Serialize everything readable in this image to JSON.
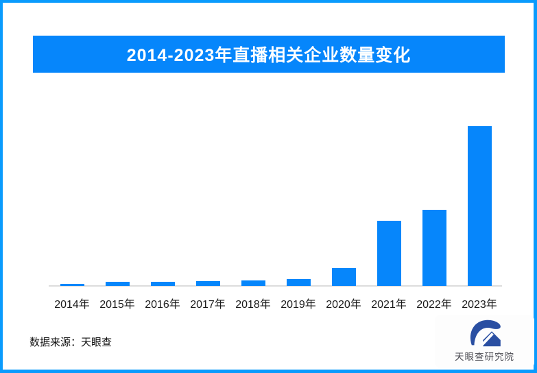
{
  "page": {
    "background": "#ffffff",
    "border_color": "#0a9bfd"
  },
  "title_banner": {
    "text": "2014-2023年直播相关企业数量变化",
    "bg_color": "#0686fb",
    "text_color": "#ffffff"
  },
  "chart_data": {
    "type": "bar",
    "title": "2014-2023年直播相关企业数量变化",
    "categories": [
      "2014年",
      "2015年",
      "2016年",
      "2017年",
      "2018年",
      "2019年",
      "2020年",
      "2021年",
      "2022年",
      "2023年"
    ],
    "values": [
      1.5,
      2.4,
      2.6,
      3.0,
      3.6,
      4.3,
      11.2,
      40.8,
      47.6,
      100
    ],
    "value_note": "no y-axis, gridlines or data labels are shown in the image; values are relative bar heights normalized so 2023 = 100",
    "xlabel": "",
    "ylabel": "",
    "ylim": [
      0,
      100
    ],
    "grid": false,
    "legend": false,
    "bar_color": "#0686fb",
    "axis_line_color": "#dcdcdc"
  },
  "footer": {
    "source_text": "数据来源：天眼查"
  },
  "logo": {
    "icon": "tianyancha-eye-house-logo-icon",
    "icon_color": "#2a4fa2",
    "text": "天眼查研究院"
  }
}
